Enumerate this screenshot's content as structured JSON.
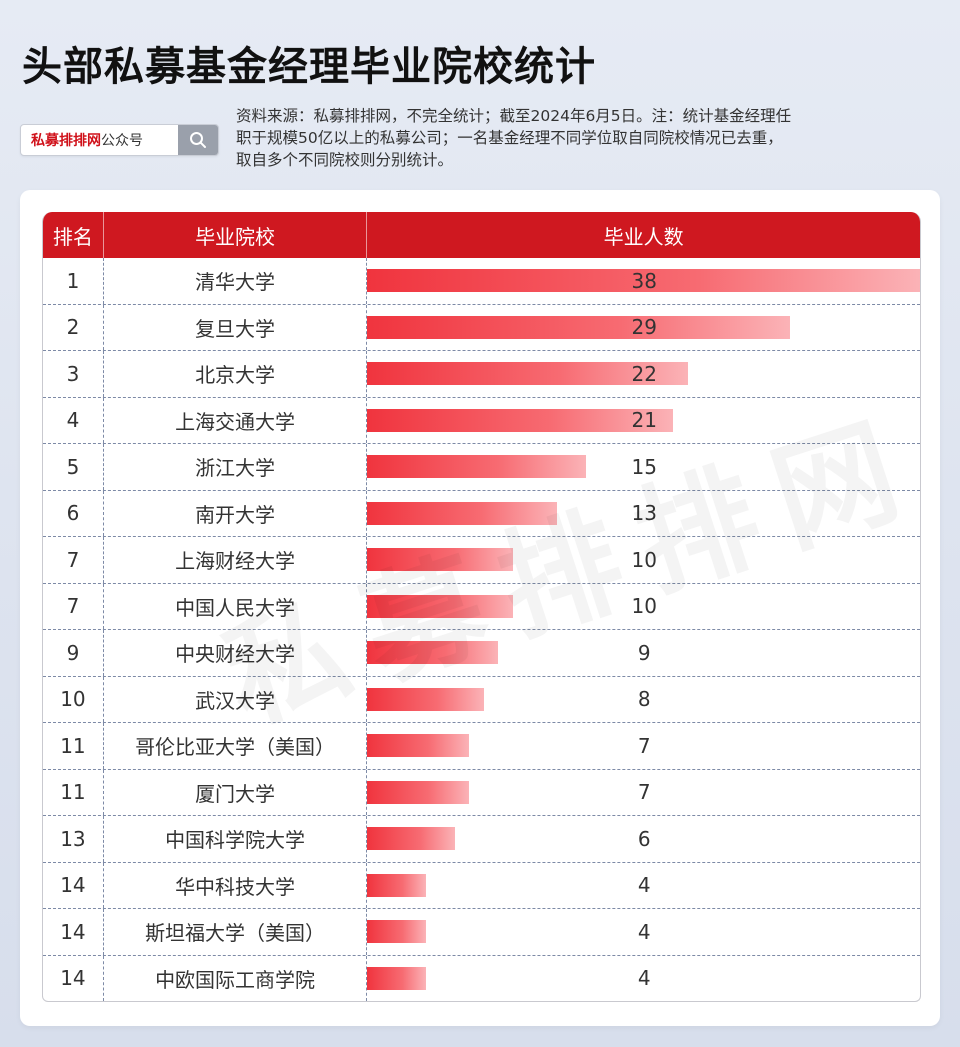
{
  "title": "头部私募基金经理毕业院校统计",
  "search": {
    "brand": "私募排排网",
    "suffix": "公众号",
    "icon": "search-icon"
  },
  "note": "资料来源：私募排排网，不完全统计；截至2024年6月5日。注：统计基金经理任职于规模50亿以上的私募公司；一名基金经理不同学位取自同院校情况已去重，取自多个不同院校则分别统计。",
  "watermark": "私募排排网",
  "chart_data": {
    "type": "bar",
    "orientation": "horizontal",
    "columns": [
      "排名",
      "毕业院校",
      "毕业人数"
    ],
    "rows": [
      {
        "rank": "1",
        "school": "清华大学",
        "value": 38
      },
      {
        "rank": "2",
        "school": "复旦大学",
        "value": 29
      },
      {
        "rank": "3",
        "school": "北京大学",
        "value": 22
      },
      {
        "rank": "4",
        "school": "上海交通大学",
        "value": 21
      },
      {
        "rank": "5",
        "school": "浙江大学",
        "value": 15
      },
      {
        "rank": "6",
        "school": "南开大学",
        "value": 13
      },
      {
        "rank": "7",
        "school": "上海财经大学",
        "value": 10
      },
      {
        "rank": "7",
        "school": "中国人民大学",
        "value": 10
      },
      {
        "rank": "9",
        "school": "中央财经大学",
        "value": 9
      },
      {
        "rank": "10",
        "school": "武汉大学",
        "value": 8
      },
      {
        "rank": "11",
        "school": "哥伦比亚大学（美国）",
        "value": 7
      },
      {
        "rank": "11",
        "school": "厦门大学",
        "value": 7
      },
      {
        "rank": "13",
        "school": "中国科学院大学",
        "value": 6
      },
      {
        "rank": "14",
        "school": "华中科技大学",
        "value": 4
      },
      {
        "rank": "14",
        "school": "斯坦福大学（美国）",
        "value": 4
      },
      {
        "rank": "14",
        "school": "中欧国际工商学院",
        "value": 4
      }
    ],
    "xlim": [
      0,
      38
    ],
    "colors": {
      "header": "#cf1820",
      "bar": "#f0343e"
    }
  }
}
